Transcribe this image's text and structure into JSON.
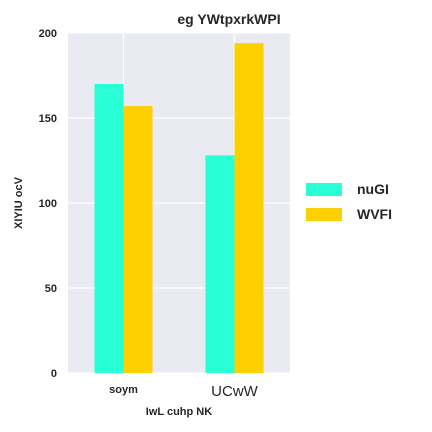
{
  "chart_data": {
    "type": "bar",
    "title": "eg YWtpxrkWPI",
    "xlabel": "IwL cuhp NK",
    "ylabel": "XIYIU ocV",
    "categories": [
      "soym",
      "UCwW"
    ],
    "series": [
      {
        "name": "nuGI",
        "values": [
          170,
          128
        ],
        "color": "#29ffd4"
      },
      {
        "name": "WVFI",
        "values": [
          157,
          194
        ],
        "color": "#ffd000"
      }
    ],
    "ylim": [
      0,
      200
    ],
    "yticks": [
      0,
      50,
      100,
      150,
      200
    ],
    "grid": true,
    "legend_position": "right"
  }
}
